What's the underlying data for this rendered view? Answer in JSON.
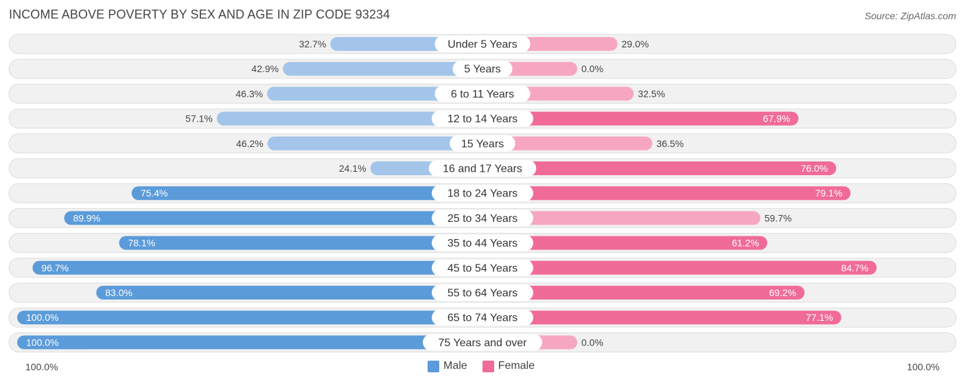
{
  "title": "INCOME ABOVE POVERTY BY SEX AND AGE IN ZIP CODE 93234",
  "source": "Source: ZipAtlas.com",
  "colors": {
    "male_strong": "#5b9bd9",
    "male_light": "#a3c5ea",
    "female_strong": "#f06b97",
    "female_light": "#f7a6c1",
    "row_bg": "#f1f1f1",
    "row_border": "#dddddd"
  },
  "axis": {
    "left_label": "100.0%",
    "right_label": "100.0%"
  },
  "legend": {
    "male": "Male",
    "female": "Female"
  },
  "chart_data": {
    "type": "bar",
    "orientation": "horizontal-diverging",
    "title": "INCOME ABOVE POVERTY BY SEX AND AGE IN ZIP CODE 93234",
    "xlim": [
      -100,
      100
    ],
    "categories": [
      "Under 5 Years",
      "5 Years",
      "6 to 11 Years",
      "12 to 14 Years",
      "15 Years",
      "16 and 17 Years",
      "18 to 24 Years",
      "25 to 34 Years",
      "35 to 44 Years",
      "45 to 54 Years",
      "55 to 64 Years",
      "65 to 74 Years",
      "75 Years and over"
    ],
    "series": [
      {
        "name": "Male",
        "values": [
          32.7,
          42.9,
          46.3,
          57.1,
          46.2,
          24.1,
          75.4,
          89.9,
          78.1,
          96.7,
          83.0,
          100.0,
          100.0
        ],
        "labels": [
          "32.7%",
          "42.9%",
          "46.3%",
          "57.1%",
          "46.2%",
          "24.1%",
          "75.4%",
          "89.9%",
          "78.1%",
          "96.7%",
          "83.0%",
          "100.0%",
          "100.0%"
        ]
      },
      {
        "name": "Female",
        "values": [
          29.0,
          0.0,
          32.5,
          67.9,
          36.5,
          76.0,
          79.1,
          59.7,
          61.2,
          84.7,
          69.2,
          77.1,
          0.0
        ],
        "labels": [
          "29.0%",
          "0.0%",
          "32.5%",
          "67.9%",
          "36.5%",
          "76.0%",
          "79.1%",
          "59.7%",
          "61.2%",
          "84.7%",
          "69.2%",
          "77.1%",
          "0.0%"
        ]
      }
    ],
    "legend_position": "bottom-center",
    "grid": false
  }
}
